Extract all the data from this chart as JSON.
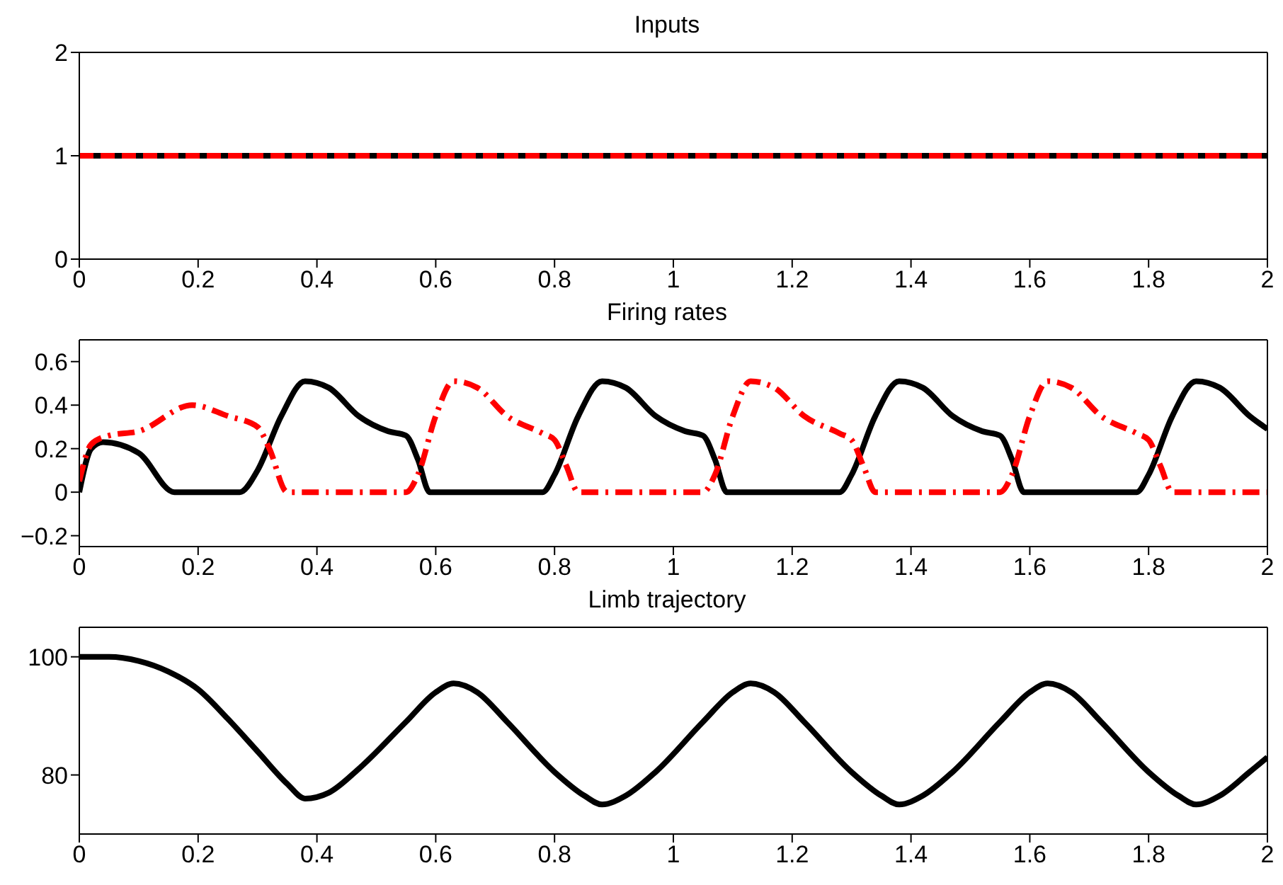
{
  "chart_data": [
    {
      "type": "line",
      "title": "Inputs",
      "xlim": [
        0,
        2
      ],
      "xticks": [
        0,
        0.2,
        0.4,
        0.6,
        0.8,
        1,
        1.2,
        1.4,
        1.6,
        1.8,
        2
      ],
      "ylim": [
        0,
        2
      ],
      "yticks": [
        0,
        1,
        2
      ],
      "grid": false,
      "marker": "none",
      "series": [
        {
          "color": "#000000",
          "line_style": "solid",
          "x": [
            0,
            2
          ],
          "values": [
            1,
            1
          ]
        },
        {
          "color": "#ff0000",
          "line_style": "dashed",
          "x": [
            0,
            2
          ],
          "values": [
            1,
            1
          ]
        }
      ]
    },
    {
      "type": "line",
      "title": "Firing rates",
      "xlim": [
        0,
        2
      ],
      "xticks": [
        0,
        0.2,
        0.4,
        0.6,
        0.8,
        1,
        1.2,
        1.4,
        1.6,
        1.8,
        2
      ],
      "ylim": [
        -0.25,
        0.7
      ],
      "yticks": [
        {
          "value": -0.2,
          "label": "−0.2"
        },
        0,
        0.2,
        0.4,
        0.6
      ],
      "grid": false,
      "marker": "none",
      "series": [
        {
          "color": "#000000",
          "line_style": "solid",
          "x": [
            0,
            0.02,
            0.04,
            0.1,
            0.16,
            0.27,
            0.3,
            0.34,
            0.38,
            0.42,
            0.47,
            0.52,
            0.55,
            0.57,
            0.59,
            0.78,
            0.8,
            0.84,
            0.88,
            0.92,
            0.97,
            1.02,
            1.05,
            1.07,
            1.09,
            1.28,
            1.3,
            1.34,
            1.38,
            1.42,
            1.47,
            1.52,
            1.55,
            1.57,
            1.59,
            1.78,
            1.8,
            1.84,
            1.88,
            1.92,
            1.97,
            2
          ],
          "values": [
            0,
            0.2,
            0.23,
            0.18,
            0,
            0,
            0.1,
            0.35,
            0.51,
            0.48,
            0.35,
            0.28,
            0.26,
            0.15,
            0,
            0,
            0.08,
            0.35,
            0.51,
            0.48,
            0.35,
            0.28,
            0.26,
            0.15,
            0,
            0,
            0.08,
            0.35,
            0.51,
            0.48,
            0.35,
            0.28,
            0.26,
            0.15,
            0,
            0,
            0.08,
            0.35,
            0.51,
            0.48,
            0.35,
            0.29
          ]
        },
        {
          "color": "#ff0000",
          "line_style": "dashdot",
          "x": [
            0,
            0.02,
            0.05,
            0.1,
            0.19,
            0.25,
            0.3,
            0.32,
            0.35,
            0.55,
            0.57,
            0.6,
            0.63,
            0.67,
            0.72,
            0.78,
            0.8,
            0.82,
            0.84,
            1.05,
            1.07,
            1.1,
            1.13,
            1.17,
            1.22,
            1.28,
            1.3,
            1.32,
            1.34,
            1.55,
            1.57,
            1.6,
            1.63,
            1.67,
            1.72,
            1.78,
            1.8,
            1.82,
            1.84,
            2
          ],
          "values": [
            0.05,
            0.22,
            0.26,
            0.28,
            0.4,
            0.35,
            0.3,
            0.2,
            0,
            0,
            0.08,
            0.35,
            0.51,
            0.48,
            0.35,
            0.27,
            0.24,
            0.12,
            0,
            0,
            0.08,
            0.35,
            0.51,
            0.48,
            0.35,
            0.27,
            0.24,
            0.12,
            0,
            0,
            0.08,
            0.35,
            0.51,
            0.48,
            0.35,
            0.27,
            0.24,
            0.12,
            0,
            0
          ]
        }
      ]
    },
    {
      "type": "line",
      "title": "Limb trajectory",
      "xlim": [
        0,
        2
      ],
      "xticks": [
        0,
        0.2,
        0.4,
        0.6,
        0.8,
        1,
        1.2,
        1.4,
        1.6,
        1.8,
        2
      ],
      "ylim": [
        70,
        105
      ],
      "yticks": [
        80,
        100
      ],
      "grid": false,
      "marker": "none",
      "series": [
        {
          "color": "#000000",
          "line_style": "solid",
          "x": [
            0,
            0.05,
            0.1,
            0.15,
            0.2,
            0.25,
            0.3,
            0.35,
            0.38,
            0.42,
            0.47,
            0.55,
            0.6,
            0.63,
            0.67,
            0.72,
            0.8,
            0.85,
            0.88,
            0.92,
            0.97,
            1.05,
            1.1,
            1.13,
            1.17,
            1.22,
            1.3,
            1.35,
            1.38,
            1.42,
            1.47,
            1.55,
            1.6,
            1.63,
            1.67,
            1.72,
            1.8,
            1.85,
            1.88,
            1.92,
            1.97,
            2
          ],
          "values": [
            100,
            100,
            99.3,
            97.5,
            94.5,
            89.5,
            84,
            78.5,
            76,
            77,
            81,
            89,
            94,
            95.5,
            94,
            89,
            80.5,
            76.5,
            75,
            76.5,
            80.5,
            89,
            94,
            95.5,
            94,
            89,
            80.5,
            76.5,
            75,
            76.5,
            80.5,
            89,
            94,
            95.5,
            94,
            89,
            80.5,
            76.5,
            75,
            76.5,
            80.5,
            83
          ]
        }
      ]
    }
  ]
}
